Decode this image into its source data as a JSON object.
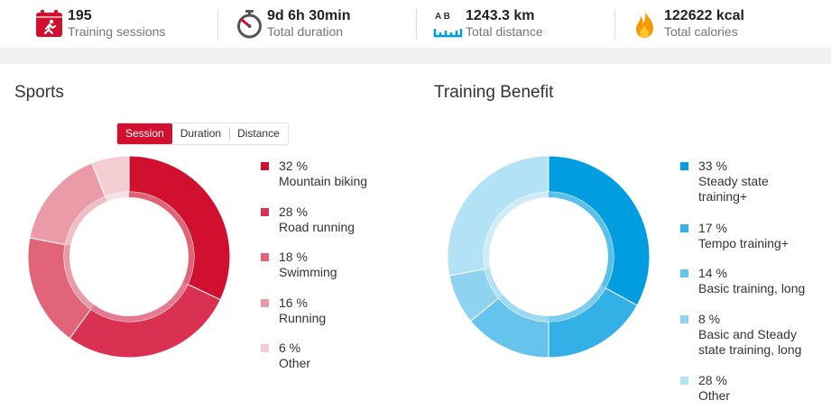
{
  "stats": [
    {
      "value": "195",
      "label": "Training sessions",
      "icon": "training-session-icon"
    },
    {
      "value": "9d 6h 30min",
      "label": "Total duration",
      "icon": "stopwatch-icon"
    },
    {
      "value": "1243.3 km",
      "label": "Total distance",
      "icon": "distance-icon",
      "icon_text": "A B"
    },
    {
      "value": "122622 kcal",
      "label": "Total calories",
      "icon": "flame-icon"
    }
  ],
  "sports": {
    "title": "Sports",
    "tabs": [
      "Session",
      "Duration",
      "Distance"
    ],
    "active_tab": "Session",
    "items": [
      {
        "pct": "32 %",
        "name": "Mountain biking",
        "value": 32,
        "color": "#d0102e"
      },
      {
        "pct": "28 %",
        "name": "Road running",
        "value": 28,
        "color": "#da3152"
      },
      {
        "pct": "18 %",
        "name": "Swimming",
        "value": 18,
        "color": "#e26478"
      },
      {
        "pct": "16 %",
        "name": "Running",
        "value": 16,
        "color": "#eb9aa7"
      },
      {
        "pct": "6 %",
        "name": "Other",
        "value": 6,
        "color": "#f4cdd3"
      }
    ]
  },
  "benefit": {
    "title": "Training Benefit",
    "items": [
      {
        "pct": "33 %",
        "name": "Steady state training+",
        "value": 33,
        "color": "#009ee0"
      },
      {
        "pct": "17 %",
        "name": "Tempo training+",
        "value": 17,
        "color": "#33b1e6"
      },
      {
        "pct": "14 %",
        "name": "Basic training, long",
        "value": 14,
        "color": "#66c3ec"
      },
      {
        "pct": "8 %",
        "name": "Basic and Steady state training, long",
        "value": 8,
        "color": "#8fd3f1"
      },
      {
        "pct": "28 %",
        "name": "Other",
        "value": 28,
        "color": "#b3e1f5"
      }
    ]
  }
}
